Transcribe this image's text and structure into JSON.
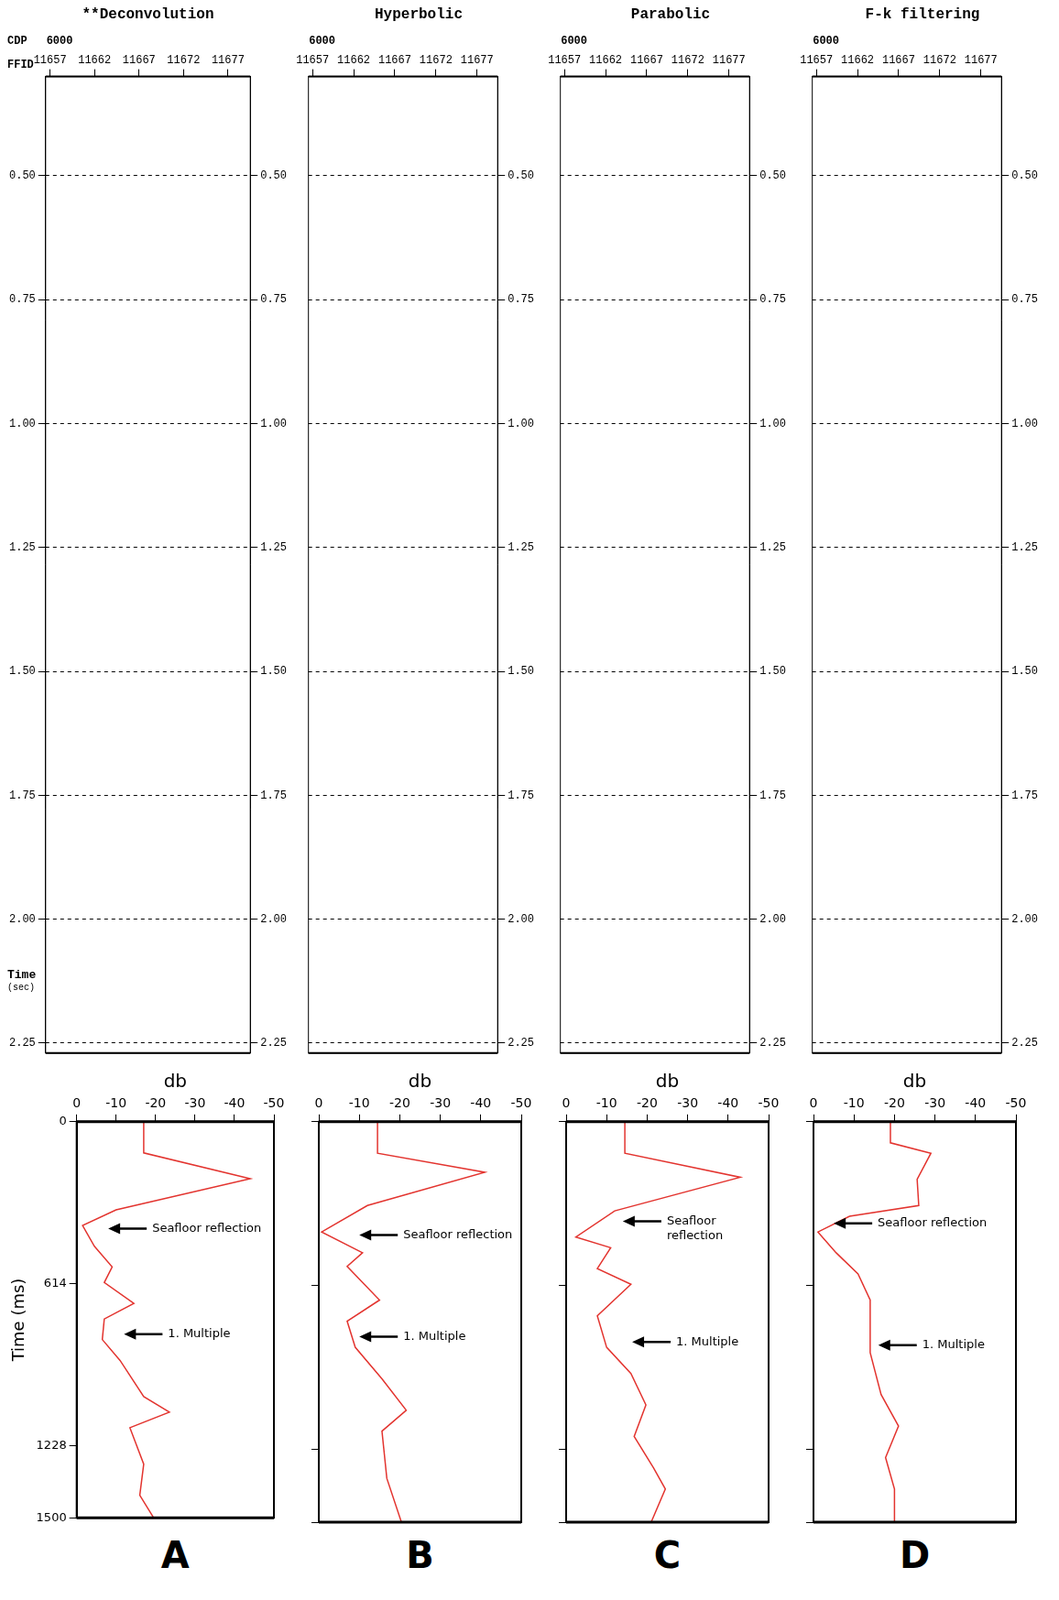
{
  "chart_data": [
    {
      "type": "seismic",
      "title": "**Deconvolution",
      "cdp_label": "CDP",
      "cdp": 6000,
      "x_label": "FFID",
      "xlim": [
        11656.5,
        11679.5
      ],
      "xticks": [
        11657,
        11662,
        11667,
        11672,
        11677
      ],
      "ylim": [
        2.27,
        0.3
      ],
      "yticks": [
        {
          "value": 0.5,
          "label": "0.50"
        },
        {
          "value": 0.75,
          "label": "0.75"
        },
        {
          "value": 1.0,
          "label": "1.00"
        },
        {
          "value": 1.25,
          "label": "1.25"
        },
        {
          "value": 1.5,
          "label": "1.50"
        },
        {
          "value": 1.75,
          "label": "1.75"
        },
        {
          "value": 2.0,
          "label": "2.00"
        },
        {
          "value": 2.25,
          "label": "2.25"
        }
      ],
      "y_title": "Time (sec)",
      "grid": true
    },
    {
      "type": "seismic",
      "title": "Hyperbolic",
      "cdp": 6000,
      "xlim": [
        11656.5,
        11679.5
      ],
      "xticks": [
        11657,
        11662,
        11667,
        11672,
        11677
      ],
      "ylim": [
        2.27,
        0.3
      ],
      "yticks": [
        {
          "value": 0.5,
          "label": "0.50"
        },
        {
          "value": 0.75,
          "label": "0.75"
        },
        {
          "value": 1.0,
          "label": "1.00"
        },
        {
          "value": 1.25,
          "label": "1.25"
        },
        {
          "value": 1.5,
          "label": "1.50"
        },
        {
          "value": 1.75,
          "label": "1.75"
        },
        {
          "value": 2.0,
          "label": "2.00"
        },
        {
          "value": 2.25,
          "label": "2.25"
        }
      ],
      "grid": true
    },
    {
      "type": "seismic",
      "title": "Parabolic",
      "cdp": 6000,
      "xlim": [
        11656.5,
        11679.5
      ],
      "xticks": [
        11657,
        11662,
        11667,
        11672,
        11677
      ],
      "ylim": [
        2.27,
        0.3
      ],
      "yticks": [
        {
          "value": 0.5,
          "label": "0.50"
        },
        {
          "value": 0.75,
          "label": "0.75"
        },
        {
          "value": 1.0,
          "label": "1.00"
        },
        {
          "value": 1.25,
          "label": "1.25"
        },
        {
          "value": 1.5,
          "label": "1.50"
        },
        {
          "value": 1.75,
          "label": "1.75"
        },
        {
          "value": 2.0,
          "label": "2.00"
        },
        {
          "value": 2.25,
          "label": "2.25"
        }
      ],
      "grid": true
    },
    {
      "type": "seismic",
      "title": "F-k filtering",
      "cdp": 6000,
      "xlim": [
        11656.5,
        11679.5
      ],
      "xticks": [
        11657,
        11662,
        11667,
        11672,
        11677
      ],
      "ylim": [
        2.27,
        0.3
      ],
      "yticks": [
        {
          "value": 0.5,
          "label": "0.50"
        },
        {
          "value": 0.75,
          "label": "0.75"
        },
        {
          "value": 1.0,
          "label": "1.00"
        },
        {
          "value": 1.25,
          "label": "1.25"
        },
        {
          "value": 1.5,
          "label": "1.50"
        },
        {
          "value": 1.75,
          "label": "1.75"
        },
        {
          "value": 2.0,
          "label": "2.00"
        },
        {
          "value": 2.25,
          "label": "2.25"
        }
      ],
      "grid": true
    },
    {
      "type": "line",
      "panel": "A",
      "x_title": "db",
      "y_title": "Time (ms)",
      "color": "#e3342f",
      "xlim": [
        0,
        -50
      ],
      "xticks": [
        0,
        -10,
        -20,
        -30,
        -40,
        -50
      ],
      "ylim": [
        1500,
        0
      ],
      "yticks": [
        0,
        614,
        1228,
        1500
      ],
      "grid": false,
      "x": [
        -17,
        -17,
        -44,
        -10,
        -1.5,
        -4.5,
        -9,
        -7,
        -14.5,
        -7,
        -6.5,
        -11,
        -17,
        -23.5,
        -13.5,
        -17,
        -16,
        -19.5
      ],
      "values": [
        0,
        118,
        216,
        334,
        393,
        472,
        550,
        609,
        688,
        747,
        825,
        904,
        1041,
        1100,
        1159,
        1297,
        1415,
        1500
      ],
      "annotations": [
        {
          "text": "Seafloor reflection",
          "x": -8,
          "y": 405
        },
        {
          "text": "1. Multiple",
          "x": -12,
          "y": 805
        }
      ]
    },
    {
      "type": "line",
      "panel": "B",
      "x_title": "db",
      "color": "#e3342f",
      "tick_labels": "x",
      "xlim": [
        0,
        -50
      ],
      "xticks": [
        0,
        -10,
        -20,
        -30,
        -40,
        -50
      ],
      "ylim": [
        1500,
        0
      ],
      "yticks": [
        0,
        614,
        1228,
        1500
      ],
      "grid": false,
      "x": [
        -14.5,
        -14.5,
        -41,
        -12,
        -0.7,
        -10.8,
        -7,
        -15,
        -7,
        -9,
        -15.6,
        -21.6,
        -15.6,
        -16.8,
        -20.4
      ],
      "values": [
        0,
        118,
        189,
        314,
        413,
        491,
        542,
        668,
        747,
        845,
        963,
        1081,
        1159,
        1336,
        1500
      ],
      "annotations": [
        {
          "text": "Seafloor reflection",
          "x": -10,
          "y": 424
        },
        {
          "text": "1. Multiple",
          "x": -10,
          "y": 805
        }
      ]
    },
    {
      "type": "line",
      "panel": "C",
      "x_title": "db",
      "color": "#e3342f",
      "tick_labels": "x",
      "xlim": [
        0,
        -50
      ],
      "xticks": [
        0,
        -10,
        -20,
        -30,
        -40,
        -50
      ],
      "ylim": [
        1500,
        0
      ],
      "yticks": [
        0,
        614,
        1228,
        1500
      ],
      "grid": false,
      "x": [
        -14.5,
        -14.5,
        -43,
        -12,
        -2.4,
        -11,
        -7.7,
        -16,
        -7.7,
        -10,
        -16,
        -19.7,
        -16.8,
        -21.6,
        -24.5,
        -21
      ],
      "values": [
        0,
        118,
        208,
        334,
        432,
        472,
        550,
        609,
        727,
        845,
        943,
        1061,
        1179,
        1297,
        1376,
        1500
      ],
      "annotations": [
        {
          "text": "Seafloor reflection",
          "x": -14,
          "y": 373
        },
        {
          "text": "1. Multiple",
          "x": -16.3,
          "y": 825
        }
      ]
    },
    {
      "type": "line",
      "panel": "D",
      "x_title": "db",
      "color": "#e3342f",
      "tick_labels": "x",
      "xlim": [
        0,
        -50
      ],
      "xticks": [
        0,
        -10,
        -20,
        -30,
        -40,
        -50
      ],
      "ylim": [
        1500,
        0
      ],
      "yticks": [
        0,
        614,
        1228,
        1500
      ],
      "grid": false,
      "x": [
        -19,
        -19,
        -29,
        -25.6,
        -26,
        -8.9,
        -1.1,
        -5.6,
        -11,
        -14,
        -14,
        -16.7,
        -21,
        -17.8,
        -20,
        -20
      ],
      "values": [
        0,
        79,
        118,
        216,
        314,
        354,
        413,
        491,
        570,
        668,
        865,
        1022,
        1140,
        1258,
        1376,
        1500
      ],
      "annotations": [
        {
          "text": "Seafloor reflection",
          "x": -5,
          "y": 381
        },
        {
          "text": "1. Multiple",
          "x": -16,
          "y": 837
        }
      ]
    }
  ]
}
